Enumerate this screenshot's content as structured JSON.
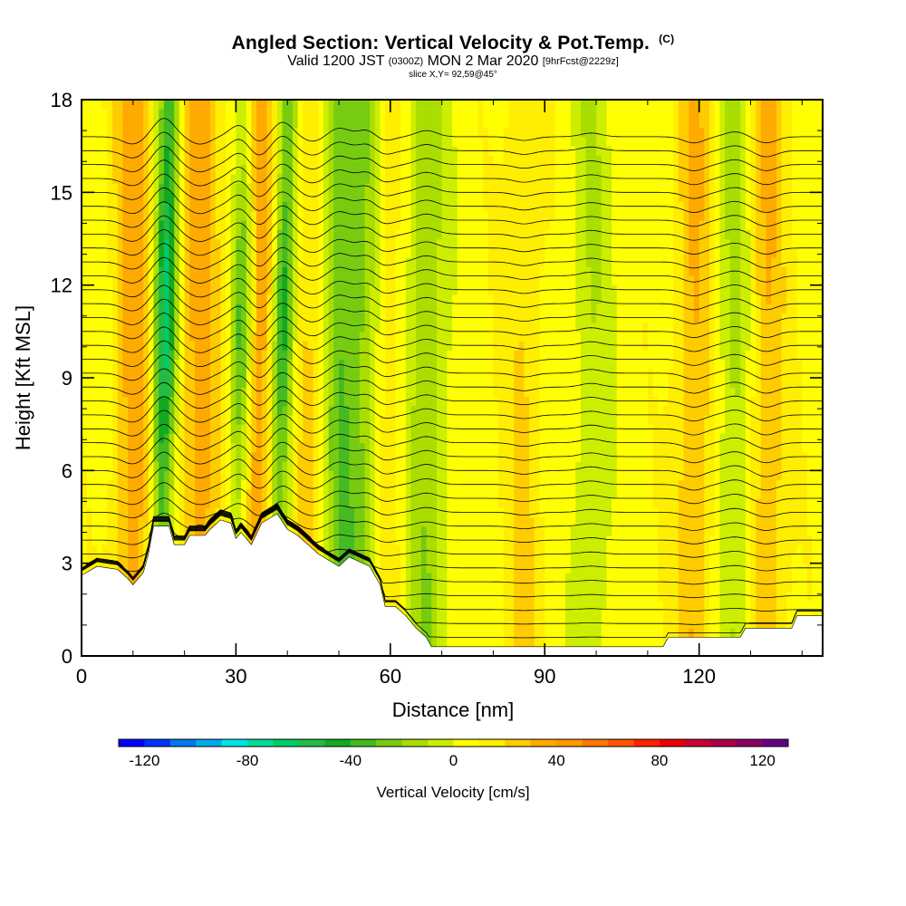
{
  "title": {
    "main": "Angled Section: Vertical Velocity & Pot.Temp.",
    "main_unit": "(C)",
    "valid_prefix": "Valid 1200 JST",
    "valid_utc": "(0300Z)",
    "valid_date": "MON 2 Mar 2020",
    "forecast": "[9hrFcst@2229z]",
    "slice": "slice X,Y= 92,59@45°"
  },
  "chart_data": {
    "type": "heatmap",
    "xlabel": "Distance [nm]",
    "ylabel": "Height [Kft MSL]",
    "xlim": [
      0,
      144
    ],
    "ylim": [
      0,
      18
    ],
    "x_ticks": [
      0,
      30,
      60,
      90,
      120
    ],
    "y_ticks": [
      0,
      3,
      6,
      9,
      12,
      15,
      18
    ],
    "x_tick_labels": [
      "0",
      "30",
      "60",
      "90",
      "120"
    ],
    "y_tick_labels": [
      "0",
      "3",
      "6",
      "9",
      "12",
      "15",
      "18"
    ],
    "colorbar": {
      "label": "Vertical Velocity [cm/s]",
      "min": -130,
      "max": 130,
      "step": 10,
      "tick_values": [
        -120,
        -80,
        -40,
        0,
        40,
        80,
        120
      ],
      "tick_labels": [
        "-120",
        "-80",
        "-40",
        "0",
        "40",
        "80",
        "120"
      ],
      "colors": [
        "#0000ff",
        "#0033ff",
        "#0077ee",
        "#00aaee",
        "#00e5e5",
        "#00dd99",
        "#00cc66",
        "#22bb44",
        "#11aa22",
        "#44bb22",
        "#77cc11",
        "#aadd00",
        "#ccee00",
        "#ffff00",
        "#ffee00",
        "#ffcc00",
        "#ffaa00",
        "#ff9900",
        "#ff7700",
        "#ff5500",
        "#ff2200",
        "#ee0000",
        "#cc0033",
        "#aa0044",
        "#880066",
        "#660088"
      ]
    },
    "terrain_kft": [
      {
        "x": 0,
        "h": 2.6
      },
      {
        "x": 3,
        "h": 2.9
      },
      {
        "x": 7,
        "h": 2.8
      },
      {
        "x": 9,
        "h": 2.5
      },
      {
        "x": 10,
        "h": 2.3
      },
      {
        "x": 12,
        "h": 2.7
      },
      {
        "x": 13,
        "h": 3.3
      },
      {
        "x": 14,
        "h": 4.2
      },
      {
        "x": 17,
        "h": 4.2
      },
      {
        "x": 18,
        "h": 3.6
      },
      {
        "x": 20,
        "h": 3.6
      },
      {
        "x": 21,
        "h": 3.9
      },
      {
        "x": 24,
        "h": 3.9
      },
      {
        "x": 25,
        "h": 4.1
      },
      {
        "x": 27,
        "h": 4.4
      },
      {
        "x": 29,
        "h": 4.3
      },
      {
        "x": 30,
        "h": 3.8
      },
      {
        "x": 31,
        "h": 4.0
      },
      {
        "x": 33,
        "h": 3.6
      },
      {
        "x": 35,
        "h": 4.3
      },
      {
        "x": 38,
        "h": 4.6
      },
      {
        "x": 40,
        "h": 4.1
      },
      {
        "x": 42,
        "h": 3.9
      },
      {
        "x": 44,
        "h": 3.6
      },
      {
        "x": 46,
        "h": 3.3
      },
      {
        "x": 48,
        "h": 3.1
      },
      {
        "x": 50,
        "h": 2.9
      },
      {
        "x": 52,
        "h": 3.2
      },
      {
        "x": 56,
        "h": 2.9
      },
      {
        "x": 58,
        "h": 2.3
      },
      {
        "x": 59,
        "h": 1.6
      },
      {
        "x": 61,
        "h": 1.6
      },
      {
        "x": 63,
        "h": 1.3
      },
      {
        "x": 65,
        "h": 0.9
      },
      {
        "x": 67,
        "h": 0.6
      },
      {
        "x": 68,
        "h": 0.3
      },
      {
        "x": 113,
        "h": 0.3
      },
      {
        "x": 114,
        "h": 0.6
      },
      {
        "x": 128,
        "h": 0.6
      },
      {
        "x": 129,
        "h": 0.9
      },
      {
        "x": 138,
        "h": 0.9
      },
      {
        "x": 139,
        "h": 1.3
      },
      {
        "x": 144,
        "h": 1.3
      }
    ],
    "updraft_columns": [
      {
        "x": 10,
        "w_cm_s": 30
      },
      {
        "x": 23,
        "w_cm_s": 30
      },
      {
        "x": 34,
        "w_cm_s": 35
      },
      {
        "x": 45,
        "w_cm_s": 20
      },
      {
        "x": 58,
        "w_cm_s": 30
      },
      {
        "x": 86,
        "w_cm_s": 15
      },
      {
        "x": 119,
        "w_cm_s": 25
      },
      {
        "x": 133,
        "w_cm_s": 25
      }
    ],
    "downdraft_columns": [
      {
        "x": 16,
        "w_cm_s": -75
      },
      {
        "x": 31,
        "w_cm_s": -55
      },
      {
        "x": 39,
        "w_cm_s": -60
      },
      {
        "x": 50,
        "w_cm_s": -35
      },
      {
        "x": 56,
        "w_cm_s": -40
      },
      {
        "x": 67,
        "w_cm_s": -25
      },
      {
        "x": 99,
        "w_cm_s": -15
      },
      {
        "x": 127,
        "w_cm_s": -20
      }
    ],
    "isentrope_spacing_kft": 0.45,
    "isentrope_count": 37
  }
}
